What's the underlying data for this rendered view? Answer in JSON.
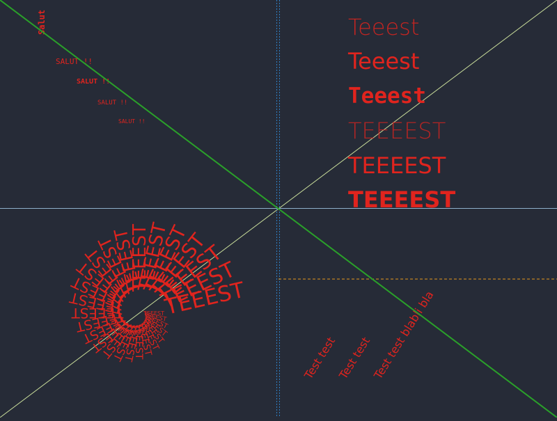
{
  "colors": {
    "background": "#262b37",
    "text": "#e0241e",
    "diagonal_green": "#2aa12a",
    "diagonal_light": "#c9dd9a",
    "axis_horizontal": "#8fb0cc",
    "axis_vertical": "#2e7fc4",
    "dashed_orange": "#e59a1d"
  },
  "corner_label": "Salut",
  "salut_lines": [
    "SALUT !!",
    "SALUT !!",
    "SALUT !!",
    "SALUT !!"
  ],
  "teeest_lines": [
    "Teeest",
    "Teeest",
    "Teeest",
    "TEEEEST",
    "TEEEEST",
    "TEEEEST"
  ],
  "spiral_word": "TEEEST",
  "rotated_texts": [
    "Test test",
    "Test test",
    "Test test blabli bla"
  ]
}
